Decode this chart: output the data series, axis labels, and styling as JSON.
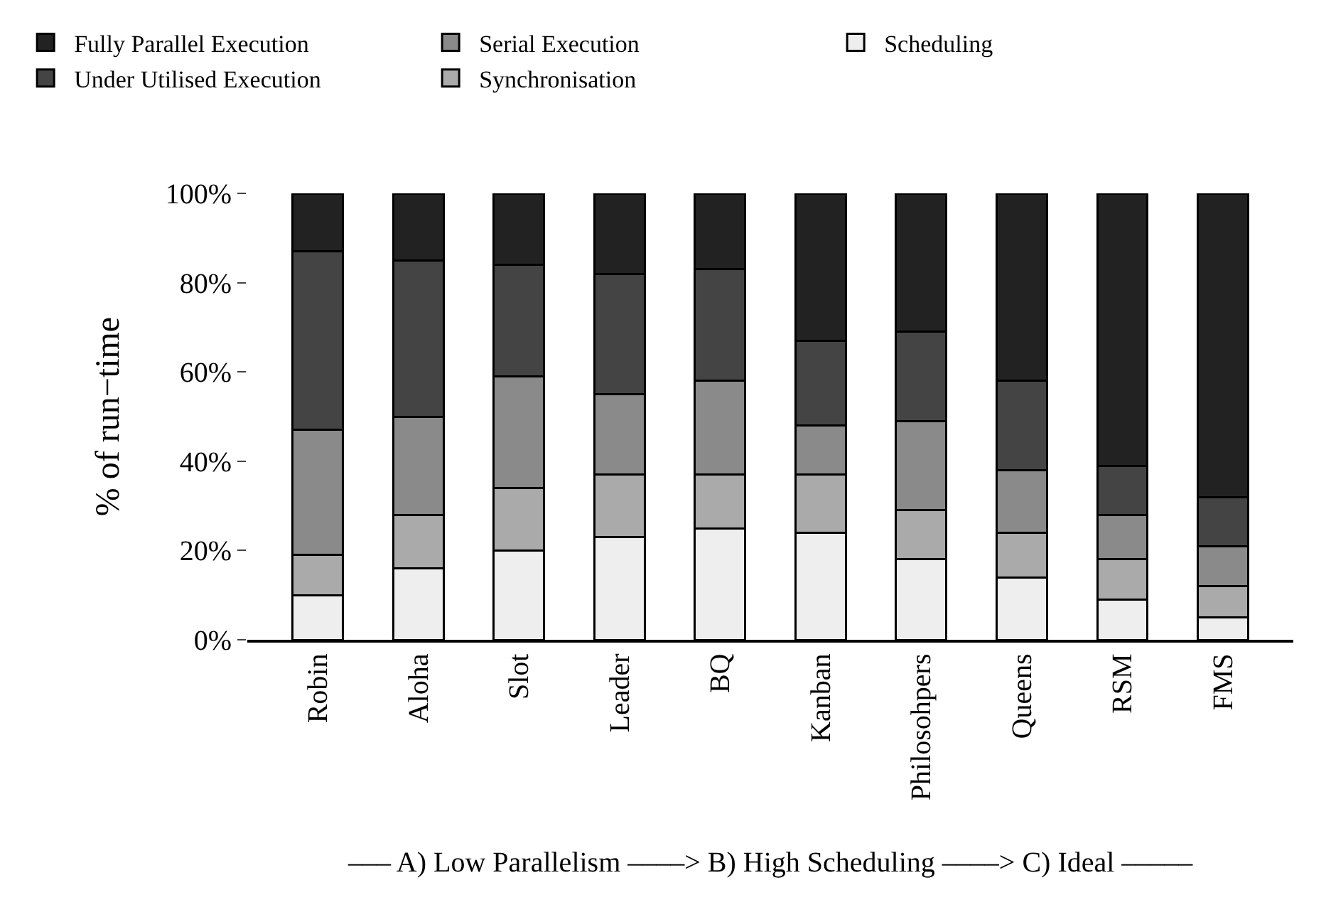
{
  "chart_data": {
    "type": "bar",
    "stacked": true,
    "ylabel": "% of run−time",
    "categories": [
      "Robin",
      "Aloha",
      "Slot",
      "Leader",
      "BQ",
      "Kanban",
      "Philosohpers",
      "Queens",
      "RSM",
      "FMS"
    ],
    "series": [
      {
        "name": "Scheduling",
        "color": "#eeeeee",
        "values": [
          10,
          16,
          20,
          23,
          25,
          24,
          18,
          14,
          9,
          5
        ]
      },
      {
        "name": "Synchronisation",
        "color": "#aaaaaa",
        "values": [
          9,
          12,
          14,
          14,
          12,
          13,
          11,
          10,
          9,
          7
        ]
      },
      {
        "name": "Serial Execution",
        "color": "#8a8a8a",
        "values": [
          28,
          22,
          25,
          18,
          21,
          11,
          20,
          14,
          10,
          9
        ]
      },
      {
        "name": "Under Utilised Execution",
        "color": "#444444",
        "values": [
          40,
          35,
          25,
          27,
          25,
          19,
          20,
          20,
          11,
          11
        ]
      },
      {
        "name": "Fully Parallel Execution",
        "color": "#222222",
        "values": [
          13,
          15,
          16,
          18,
          17,
          33,
          31,
          42,
          61,
          68
        ]
      }
    ],
    "ylim": [
      0,
      100
    ],
    "yticks": [
      {
        "value": 0,
        "label": "0%"
      },
      {
        "value": 20,
        "label": "20%"
      },
      {
        "value": 40,
        "label": "40%"
      },
      {
        "value": 60,
        "label": "60%"
      },
      {
        "value": 80,
        "label": "80%"
      },
      {
        "value": 100,
        "label": "100%"
      }
    ],
    "grid": false,
    "legend": "top",
    "annotations": [
      "––– A) Low Parallelism ––––> B) High Scheduling ––––> C) Ideal –––––"
    ]
  }
}
